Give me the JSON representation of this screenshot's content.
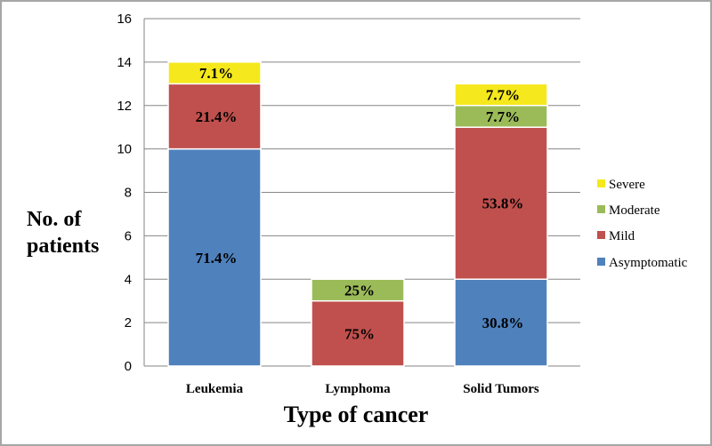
{
  "chart_data": {
    "type": "bar",
    "stacked": true,
    "xlabel": "Type of cancer",
    "ylabel": "No. of patients",
    "ylim": [
      0,
      16
    ],
    "yticks": [
      0,
      2,
      4,
      6,
      8,
      10,
      12,
      14,
      16
    ],
    "grid": true,
    "legend_position": "right",
    "categories": [
      "Leukemia",
      "Lymphoma",
      "Solid Tumors"
    ],
    "series": [
      {
        "name": "Asymptomatic",
        "color": "#4f81bd",
        "values": [
          10,
          0,
          4
        ],
        "labels": [
          "71.4%",
          "",
          "30.8%"
        ]
      },
      {
        "name": "Mild",
        "color": "#c0504d",
        "values": [
          3,
          3,
          7
        ],
        "labels": [
          "21.4%",
          "75%",
          "53.8%"
        ]
      },
      {
        "name": "Moderate",
        "color": "#9bbb59",
        "values": [
          0,
          1,
          1
        ],
        "labels": [
          "",
          "25%",
          "7.7%"
        ]
      },
      {
        "name": "Severe",
        "color": "#f5e81c",
        "values": [
          1,
          0,
          1
        ],
        "labels": [
          "7.1%",
          "",
          "7.7%"
        ]
      }
    ]
  }
}
